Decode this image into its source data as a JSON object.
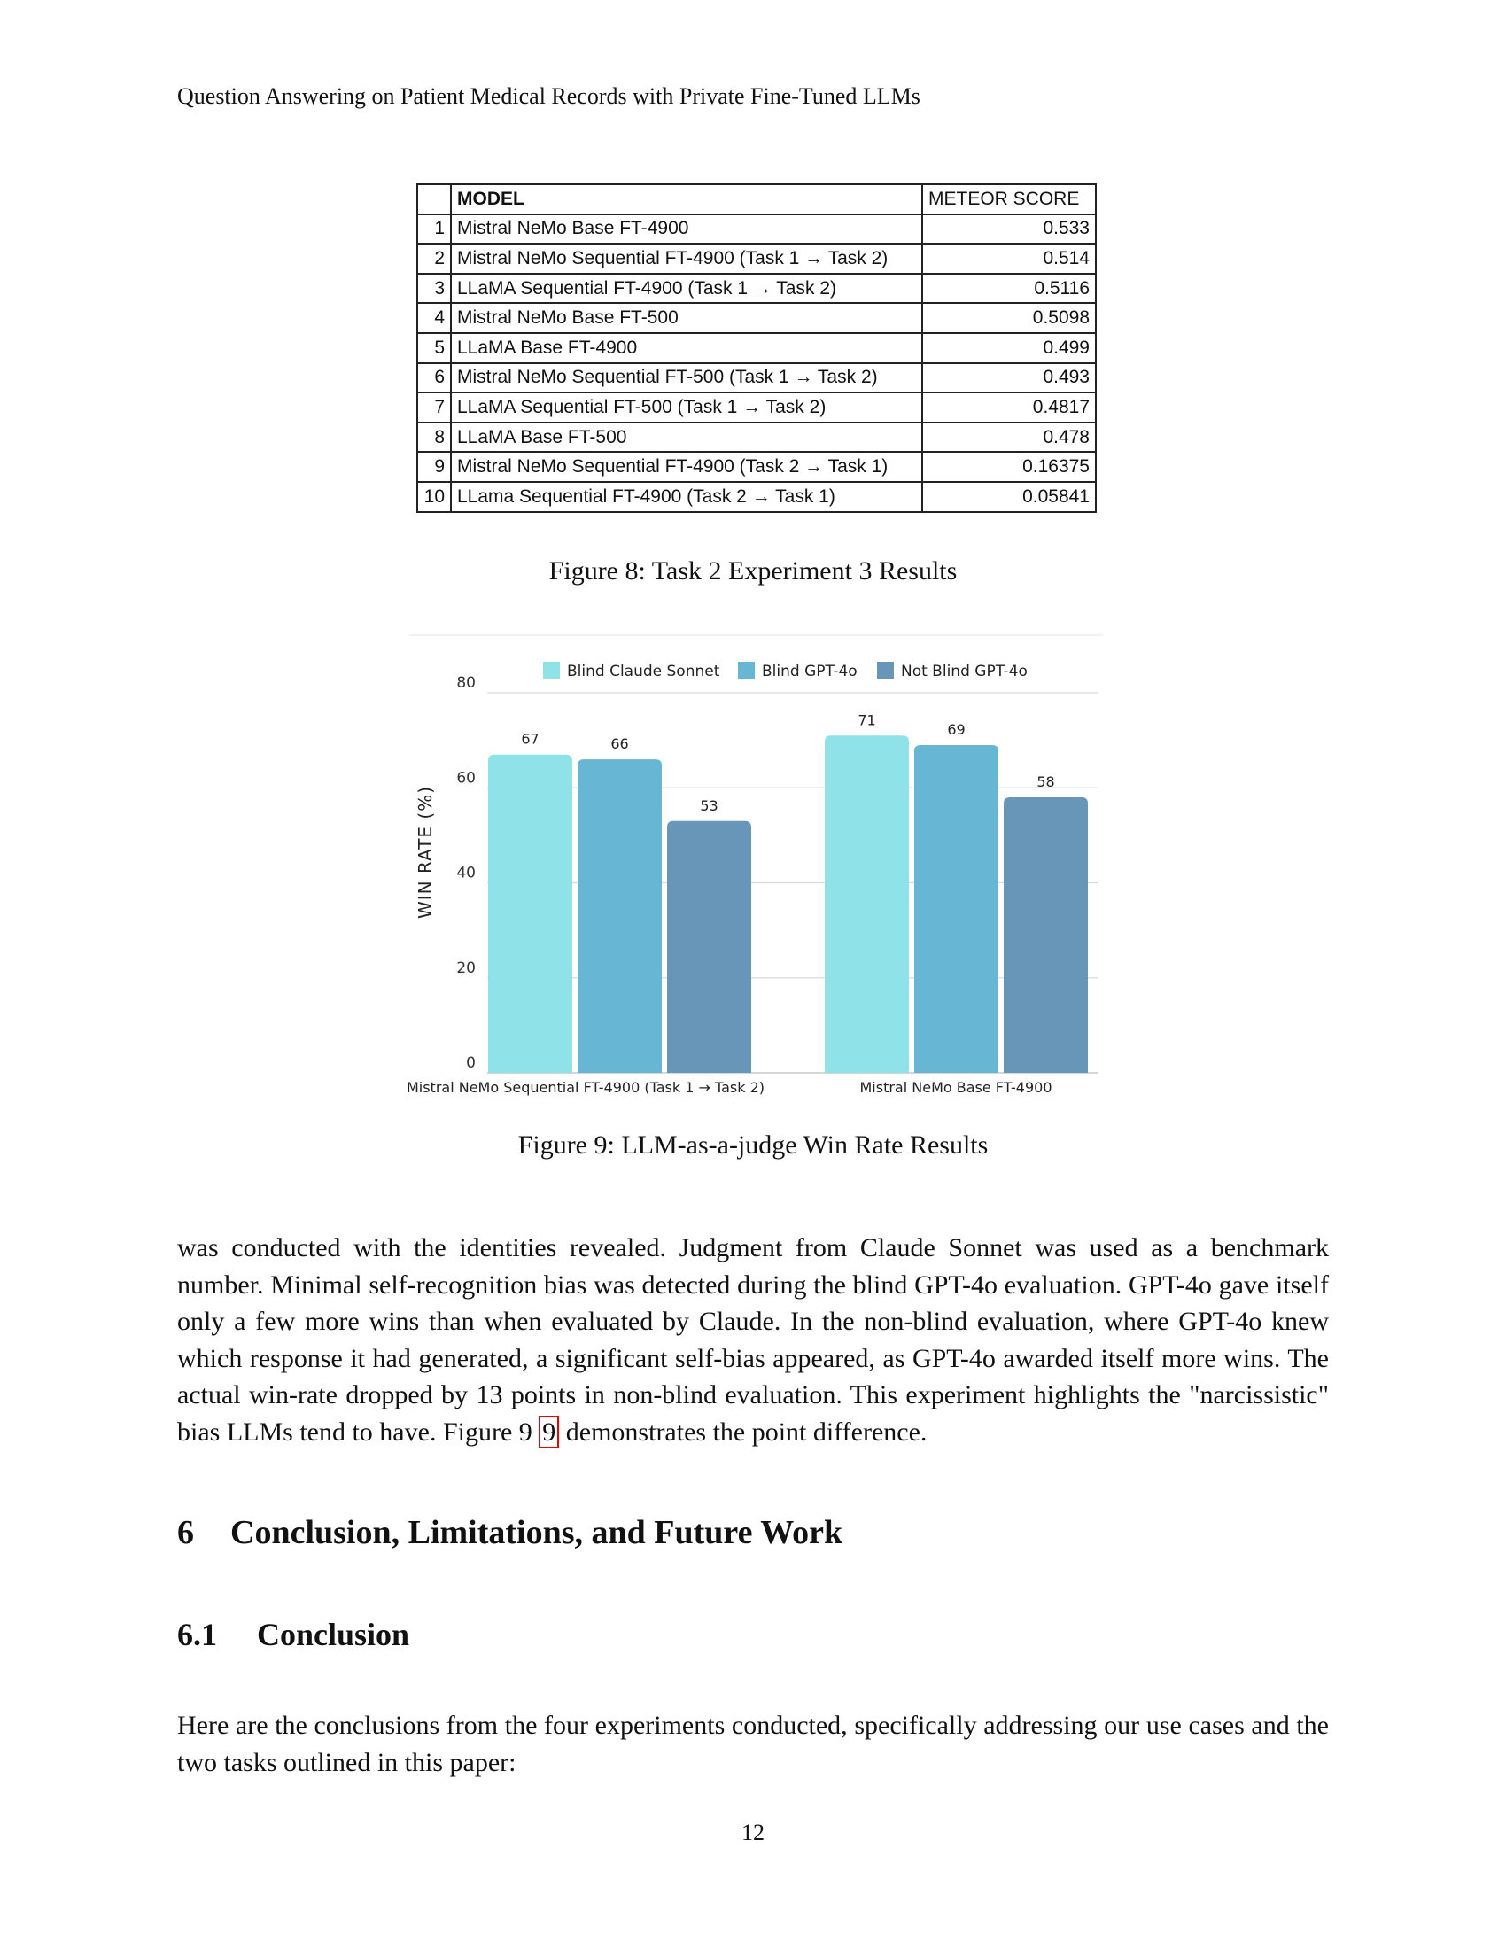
{
  "header": {
    "running_title": "Question Answering on Patient Medical Records with Private Fine-Tuned LLMs"
  },
  "table": {
    "headers": [
      "",
      "MODEL",
      "METEOR SCORE"
    ],
    "rows": [
      [
        "1",
        "Mistral NeMo Base FT-4900",
        "0.533"
      ],
      [
        "2",
        "Mistral NeMo Sequential FT-4900 (Task 1 → Task 2)",
        "0.514"
      ],
      [
        "3",
        "LLaMA Sequential FT-4900 (Task 1 → Task 2)",
        "0.5116"
      ],
      [
        "4",
        "Mistral NeMo Base FT-500",
        "0.5098"
      ],
      [
        "5",
        "LLaMA Base FT-4900",
        "0.499"
      ],
      [
        "6",
        "Mistral NeMo Sequential FT-500 (Task 1 → Task 2)",
        "0.493"
      ],
      [
        "7",
        "LLaMA Sequential FT-500 (Task 1 → Task 2)",
        "0.4817"
      ],
      [
        "8",
        "LLaMA Base FT-500",
        "0.478"
      ],
      [
        "9",
        "Mistral NeMo Sequential FT-4900 (Task 2 → Task 1)",
        "0.16375"
      ],
      [
        "10",
        "LLama Sequential FT-4900 (Task 2 → Task 1)",
        "0.05841"
      ]
    ]
  },
  "figure8": {
    "caption": "Figure 8: Task 2 Experiment 3 Results"
  },
  "chart_data": {
    "type": "bar",
    "categories": [
      "Mistral NeMo Sequential FT-4900 (Task 1 → Task 2)",
      "Mistral NeMo Base FT-4900"
    ],
    "series": [
      {
        "name": "Blind Claude Sonnet",
        "values": [
          67,
          71
        ],
        "color": "#8fe3e8"
      },
      {
        "name": "Blind GPT-4o",
        "values": [
          66,
          69
        ],
        "color": "#66b6d4"
      },
      {
        "name": "Not Blind GPT-4o",
        "values": [
          53,
          58
        ],
        "color": "#6896b9"
      }
    ],
    "ylabel": "WIN RATE (%)",
    "xlabel": "",
    "ylim": [
      0,
      80
    ],
    "yticks": [
      0,
      20,
      40,
      60,
      80
    ],
    "grid": true,
    "legend_position": "top"
  },
  "figure9": {
    "caption": "Figure 9: LLM-as-a-judge Win Rate Results"
  },
  "paragraph1": {
    "text_before": "was conducted with the identities revealed. Judgment from Claude Sonnet was used as a benchmark number. Minimal self-recognition bias was detected during the blind GPT-4o evaluation. GPT-4o gave itself only a few more wins than when evaluated by Claude. In the non-blind evaluation, where GPT-4o knew which response it had generated, a significant self-bias appeared, as GPT-4o awarded itself more wins. The actual win-rate dropped by 13 points in non-blind evaluation. This experiment highlights the \"narcissistic\" bias LLMs tend to have. Figure 9 ",
    "ref": "9",
    "text_after": " demonstrates the point difference."
  },
  "section6": {
    "number": "6",
    "title": "Conclusion, Limitations, and Future Work"
  },
  "section61": {
    "number": "6.1",
    "title": "Conclusion"
  },
  "paragraph2": "Here are the conclusions from the four experiments conducted, specifically addressing our use cases and the two tasks outlined in this paper:",
  "page_number": "12"
}
